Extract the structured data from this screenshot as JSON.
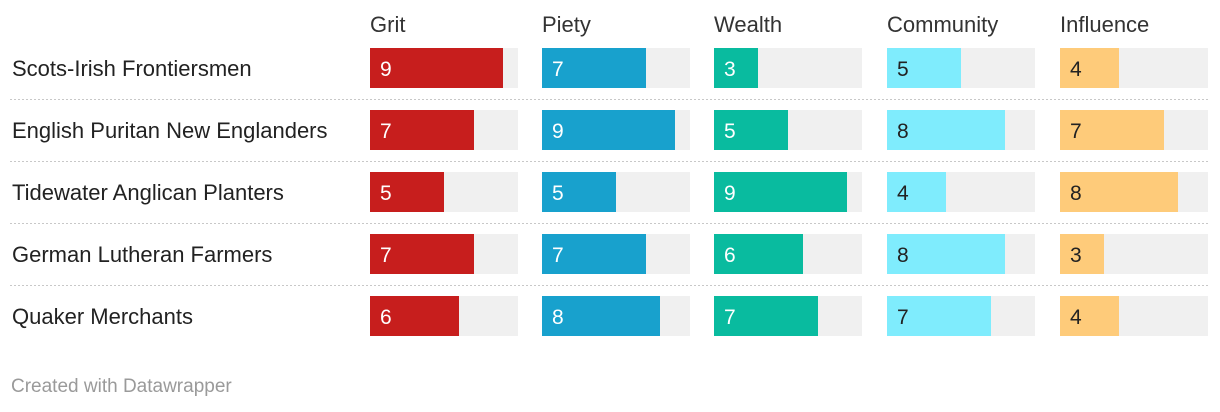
{
  "chart_data": {
    "type": "bar",
    "layout": "small-multiples-table",
    "title": "",
    "value_max": 10,
    "columns": [
      {
        "name": "Grit",
        "color": "#c71e1d",
        "label_color": "#ffffff"
      },
      {
        "name": "Piety",
        "color": "#18a1cd",
        "label_color": "#ffffff"
      },
      {
        "name": "Wealth",
        "color": "#09bb9f",
        "label_color": "#ffffff"
      },
      {
        "name": "Community",
        "color": "#7fecfd",
        "label_color": "#222222"
      },
      {
        "name": "Influence",
        "color": "#fecb7a",
        "label_color": "#222222"
      }
    ],
    "categories": [
      "Scots-Irish Frontiersmen",
      "English Puritan New Englanders",
      "Tidewater Anglican Planters",
      "German Lutheran Farmers",
      "Quaker Merchants"
    ],
    "series": [
      {
        "name": "Grit",
        "values": [
          9,
          7,
          5,
          7,
          6
        ]
      },
      {
        "name": "Piety",
        "values": [
          7,
          9,
          5,
          7,
          8
        ]
      },
      {
        "name": "Wealth",
        "values": [
          3,
          5,
          9,
          6,
          7
        ]
      },
      {
        "name": "Community",
        "values": [
          5,
          8,
          4,
          8,
          7
        ]
      },
      {
        "name": "Influence",
        "values": [
          4,
          7,
          8,
          3,
          4
        ]
      }
    ],
    "track_color": "#f0f0f0"
  },
  "footer": {
    "credit": "Created with Datawrapper"
  }
}
